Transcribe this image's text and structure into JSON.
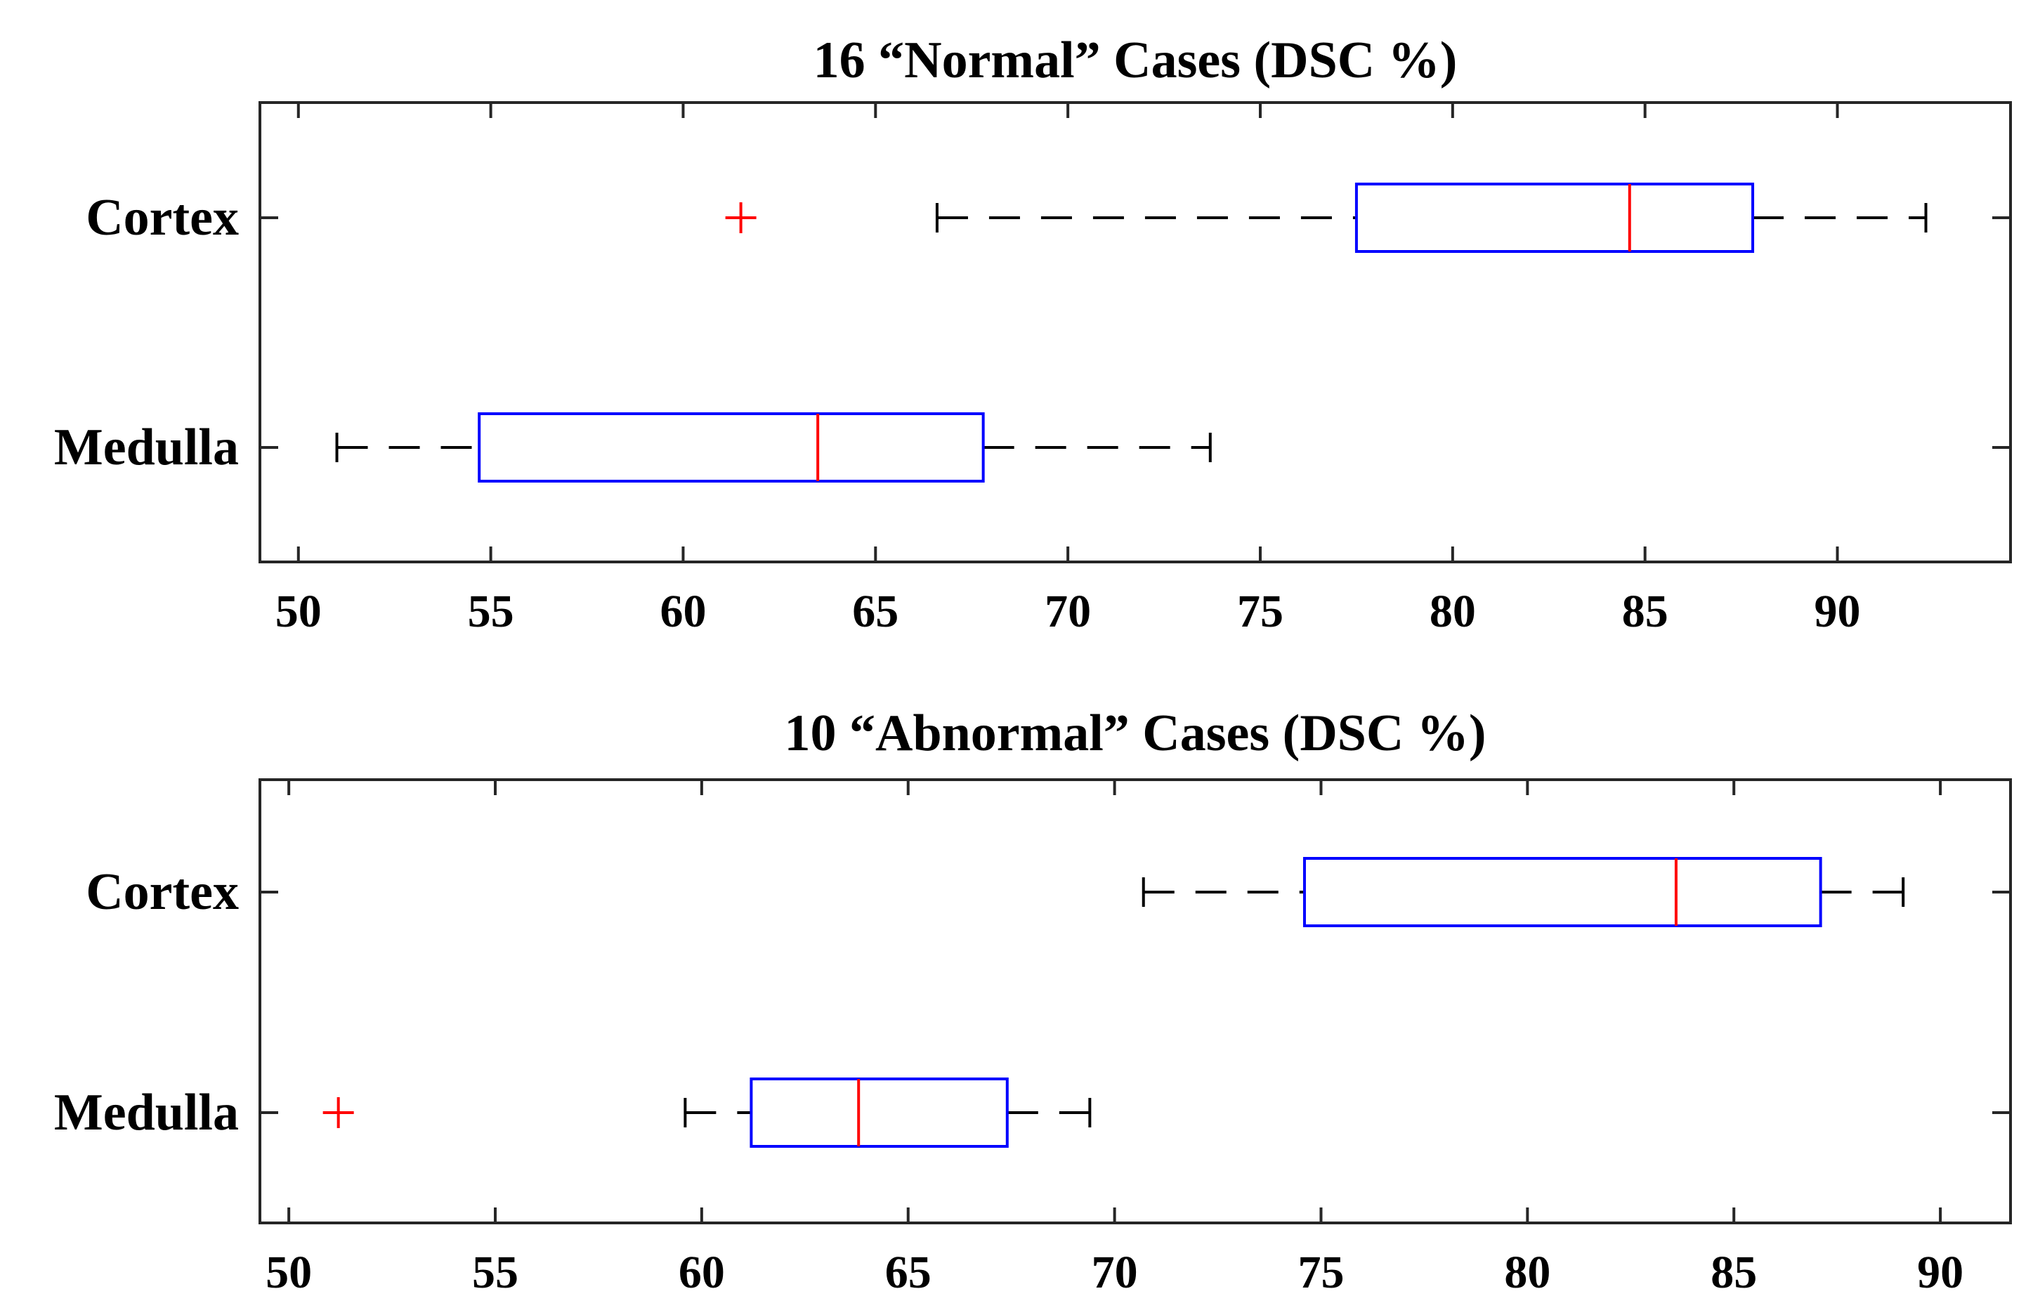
{
  "chart_data": [
    {
      "type": "boxplot",
      "orientation": "horizontal",
      "title": "16 “Normal” Cases (DSC %)",
      "categories": [
        "Cortex",
        "Medulla"
      ],
      "xlim": [
        49,
        94.5
      ],
      "ticks": [
        50,
        55,
        60,
        65,
        70,
        75,
        80,
        85,
        90
      ],
      "tick_labels": [
        "50",
        "55",
        "60",
        "65",
        "70",
        "75",
        "80",
        "85",
        "90"
      ],
      "boxes": [
        {
          "name": "Cortex",
          "whisker_low": 66.6,
          "q1": 77.5,
          "median": 84.6,
          "q3": 87.8,
          "whisker_high": 92.3,
          "outliers": [
            61.5
          ]
        },
        {
          "name": "Medulla",
          "whisker_low": 51.0,
          "q1": 54.7,
          "median": 63.5,
          "q3": 67.8,
          "whisker_high": 73.7,
          "outliers": []
        }
      ]
    },
    {
      "type": "boxplot",
      "orientation": "horizontal",
      "title": "10 “Abnormal” Cases (DSC %)",
      "categories": [
        "Cortex",
        "Medulla"
      ],
      "xlim": [
        49.3,
        91.7
      ],
      "ticks": [
        50,
        55,
        60,
        65,
        70,
        75,
        80,
        85,
        90
      ],
      "tick_labels": [
        "50",
        "55",
        "60",
        "65",
        "70",
        "75",
        "80",
        "85",
        "90"
      ],
      "boxes": [
        {
          "name": "Cortex",
          "whisker_low": 70.7,
          "q1": 74.6,
          "median": 83.6,
          "q3": 87.1,
          "whisker_high": 89.1,
          "outliers": []
        },
        {
          "name": "Medulla",
          "whisker_low": 59.6,
          "q1": 61.2,
          "median": 63.8,
          "q3": 67.4,
          "whisker_high": 69.4,
          "outliers": [
            51.2
          ]
        }
      ]
    }
  ],
  "colors": {
    "box": "#0000ff",
    "median": "#ff0000",
    "outlier": "#ff0000",
    "whisker": "#000000",
    "axis": "#262626"
  }
}
